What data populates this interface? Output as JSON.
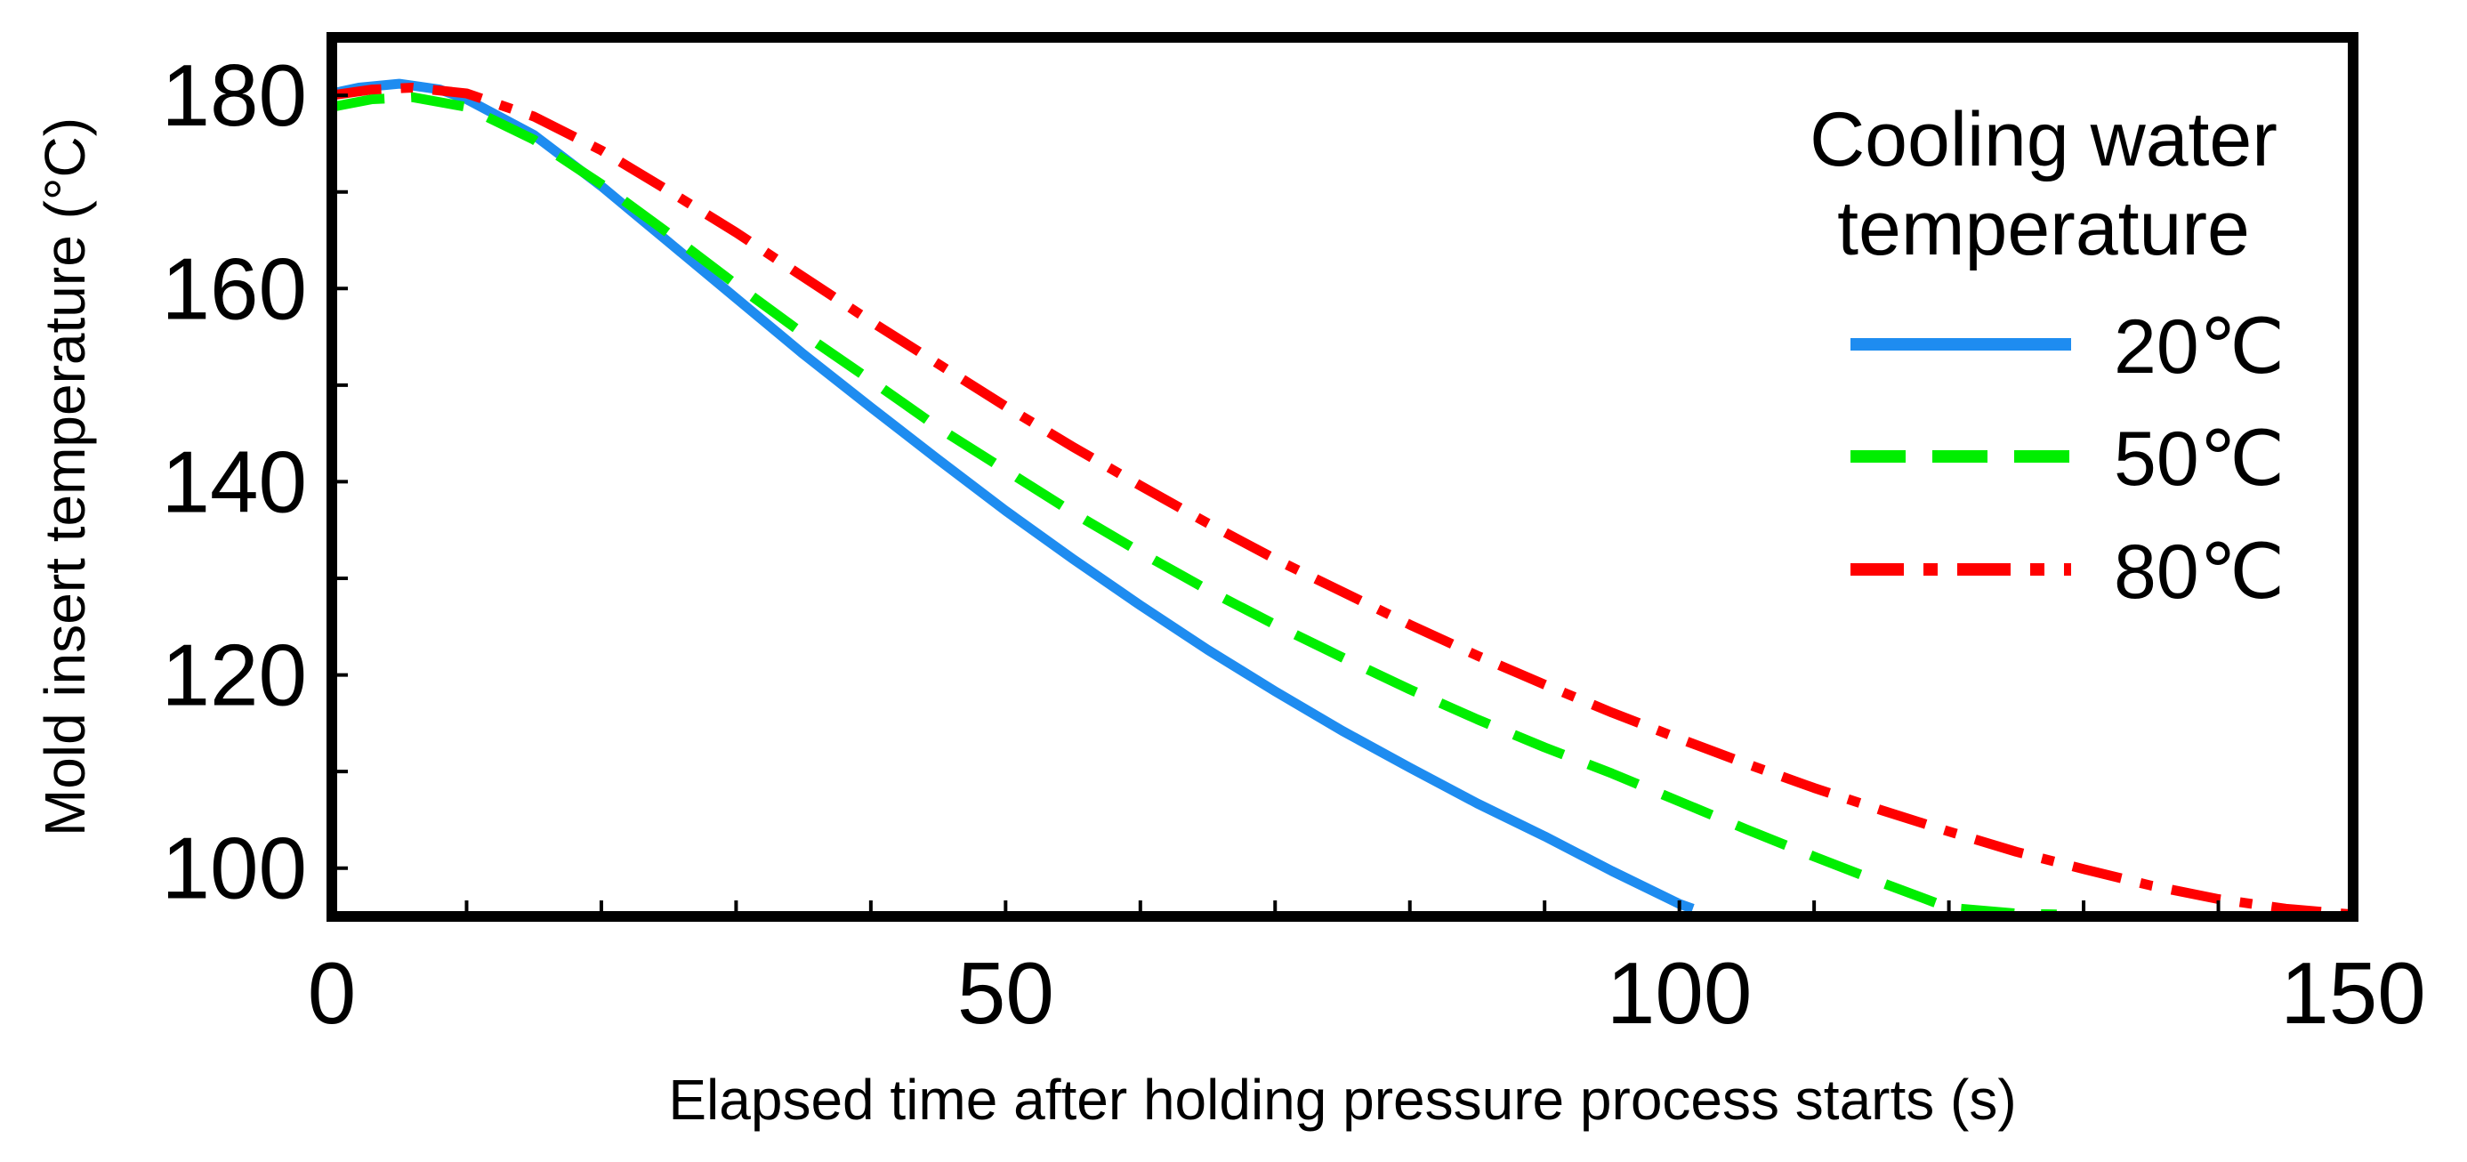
{
  "chart_data": {
    "type": "line",
    "title": "",
    "xlabel": "Elapsed time after holding pressure process starts (s)",
    "ylabel": "Mold insert temperature (°C)",
    "xlim": [
      0,
      150
    ],
    "ylim": [
      95,
      186
    ],
    "xticks": [
      0,
      50,
      100,
      150
    ],
    "xtick_labels": [
      "0",
      "50",
      "100",
      "150"
    ],
    "x_minor_step": 10,
    "yticks": [
      100,
      120,
      140,
      160,
      180
    ],
    "ytick_labels": [
      "100",
      "120",
      "140",
      "160",
      "180"
    ],
    "y_minor_step": 10,
    "grid": false,
    "legend": {
      "title_line1": "Cooling water",
      "title_line2": "temperature",
      "placement": "top-right"
    },
    "series": [
      {
        "name": "20℃",
        "color": "#1e8cf0",
        "style": "solid",
        "x": [
          0,
          2,
          5,
          8,
          10,
          15,
          20,
          25,
          30,
          35,
          40,
          45,
          50,
          55,
          60,
          65,
          70,
          75,
          80,
          85,
          90,
          95,
          100,
          101
        ],
        "y": [
          180.2,
          180.8,
          181.2,
          180.6,
          179.6,
          175.9,
          170.6,
          164.8,
          159.0,
          153.2,
          147.7,
          142.3,
          137.0,
          132.0,
          127.2,
          122.6,
          118.3,
          114.2,
          110.4,
          106.7,
          103.3,
          99.7,
          96.3,
          95.8
        ]
      },
      {
        "name": "50℃",
        "color": "#00ee00",
        "style": "dashed",
        "x": [
          0,
          3,
          6,
          10,
          15,
          20,
          25,
          30,
          35,
          40,
          45,
          50,
          55,
          60,
          65,
          70,
          75,
          80,
          85,
          90,
          95,
          100,
          105,
          110,
          115,
          120,
          125,
          128
        ],
        "y": [
          178.8,
          179.6,
          179.8,
          178.8,
          175.4,
          170.8,
          165.7,
          160.4,
          155.3,
          150.5,
          145.6,
          141.2,
          136.8,
          132.7,
          128.8,
          125.2,
          121.8,
          118.5,
          115.4,
          112.5,
          109.8,
          106.9,
          104.0,
          101.2,
          98.5,
          95.9,
          95.3,
          95.2
        ]
      },
      {
        "name": "80℃",
        "color": "#ff0000",
        "style": "dashdot",
        "x": [
          0,
          3,
          6,
          10,
          15,
          20,
          25,
          30,
          35,
          40,
          45,
          50,
          55,
          60,
          65,
          70,
          75,
          80,
          85,
          90,
          95,
          100,
          105,
          110,
          115,
          120,
          125,
          130,
          135,
          140,
          145,
          150
        ],
        "y": [
          180.0,
          180.6,
          180.8,
          180.2,
          177.8,
          174.3,
          170.1,
          165.8,
          161.2,
          156.6,
          152.2,
          147.8,
          143.6,
          139.6,
          135.7,
          132.0,
          128.6,
          125.2,
          122.0,
          119.0,
          116.1,
          113.4,
          110.8,
          108.3,
          106.0,
          103.8,
          101.7,
          99.9,
          98.2,
          96.8,
          95.8,
          95.2
        ]
      }
    ]
  }
}
